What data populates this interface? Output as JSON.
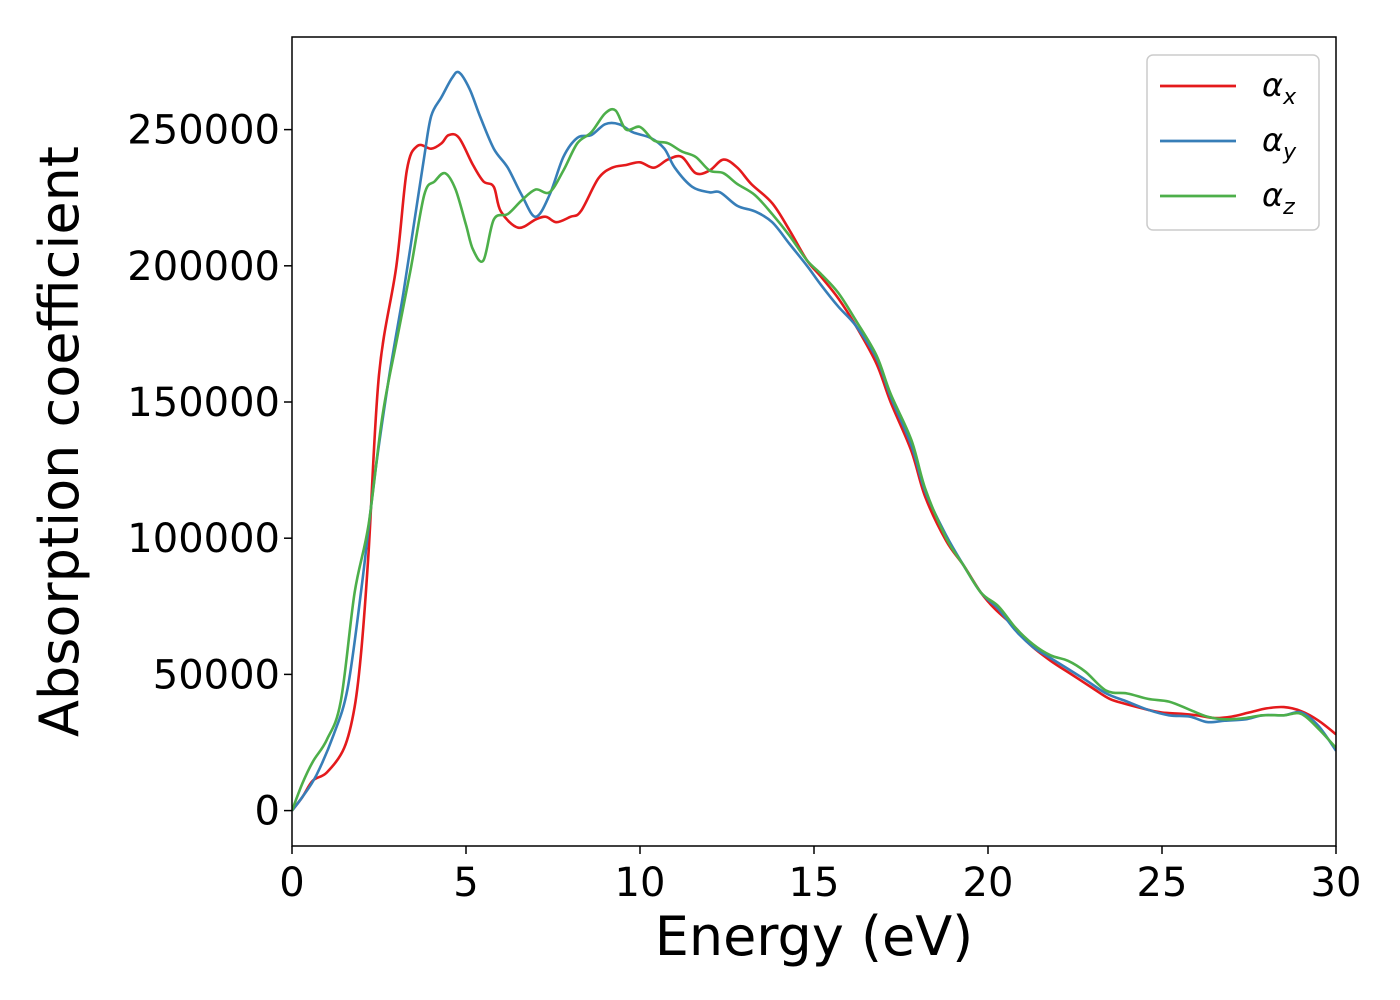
{
  "chart_data": {
    "type": "line",
    "xlabel": "Energy (eV)",
    "ylabel": "Absorption coefficient",
    "xlim": [
      0,
      30
    ],
    "ylim": [
      -13000,
      284000
    ],
    "xticks": [
      0,
      5,
      10,
      15,
      20,
      25,
      30
    ],
    "yticks": [
      0,
      50000,
      100000,
      150000,
      200000,
      250000
    ],
    "xtick_labels": [
      "0",
      "5",
      "10",
      "15",
      "20",
      "25",
      "30"
    ],
    "ytick_labels": [
      "0",
      "50000",
      "100000",
      "150000",
      "200000",
      "250000"
    ],
    "grid": false,
    "legend_position": "top-right",
    "series": [
      {
        "name": "αx",
        "legend_base": "α",
        "legend_sub": "x",
        "color": "#e41a1c",
        "points": [
          [
            0,
            0
          ],
          [
            0.3,
            5000
          ],
          [
            0.6,
            11000
          ],
          [
            1.0,
            14000
          ],
          [
            1.5,
            23000
          ],
          [
            1.8,
            38000
          ],
          [
            2.0,
            60000
          ],
          [
            2.2,
            95000
          ],
          [
            2.5,
            160000
          ],
          [
            3.0,
            200000
          ],
          [
            3.3,
            235000
          ],
          [
            3.6,
            244000
          ],
          [
            4.0,
            243000
          ],
          [
            4.3,
            245000
          ],
          [
            4.5,
            248000
          ],
          [
            4.8,
            247000
          ],
          [
            5.2,
            237000
          ],
          [
            5.5,
            231000
          ],
          [
            5.8,
            229000
          ],
          [
            6.0,
            220000
          ],
          [
            6.5,
            214000
          ],
          [
            7.0,
            217000
          ],
          [
            7.3,
            218000
          ],
          [
            7.6,
            216000
          ],
          [
            8.0,
            218000
          ],
          [
            8.3,
            220000
          ],
          [
            8.8,
            232000
          ],
          [
            9.2,
            236000
          ],
          [
            9.6,
            237000
          ],
          [
            10.0,
            238000
          ],
          [
            10.4,
            236000
          ],
          [
            10.8,
            239000
          ],
          [
            11.2,
            240000
          ],
          [
            11.6,
            234000
          ],
          [
            12.0,
            235000
          ],
          [
            12.4,
            239000
          ],
          [
            12.8,
            236000
          ],
          [
            13.2,
            230000
          ],
          [
            13.8,
            223000
          ],
          [
            14.3,
            213000
          ],
          [
            14.8,
            202000
          ],
          [
            15.2,
            196000
          ],
          [
            15.7,
            188000
          ],
          [
            16.2,
            178000
          ],
          [
            16.8,
            164000
          ],
          [
            17.2,
            150000
          ],
          [
            17.8,
            132000
          ],
          [
            18.2,
            115000
          ],
          [
            18.8,
            99000
          ],
          [
            19.3,
            90000
          ],
          [
            19.8,
            80000
          ],
          [
            20.2,
            74000
          ],
          [
            20.8,
            67000
          ],
          [
            21.2,
            61000
          ],
          [
            21.8,
            55000
          ],
          [
            22.4,
            50000
          ],
          [
            23.0,
            45000
          ],
          [
            23.5,
            41000
          ],
          [
            24.0,
            39000
          ],
          [
            24.6,
            37000
          ],
          [
            25.0,
            36000
          ],
          [
            25.6,
            35500
          ],
          [
            26.0,
            35000
          ],
          [
            26.5,
            34000
          ],
          [
            27.0,
            34500
          ],
          [
            27.5,
            36000
          ],
          [
            28.0,
            37500
          ],
          [
            28.5,
            38000
          ],
          [
            29.0,
            36500
          ],
          [
            29.5,
            33000
          ],
          [
            30.0,
            28000
          ]
        ]
      },
      {
        "name": "αy",
        "legend_base": "α",
        "legend_sub": "y",
        "color": "#377eb8",
        "points": [
          [
            0,
            0
          ],
          [
            0.3,
            5000
          ],
          [
            0.7,
            13000
          ],
          [
            1.2,
            28000
          ],
          [
            1.6,
            45000
          ],
          [
            2.0,
            82000
          ],
          [
            2.4,
            125000
          ],
          [
            2.8,
            160000
          ],
          [
            3.2,
            190000
          ],
          [
            3.5,
            215000
          ],
          [
            3.8,
            240000
          ],
          [
            4.0,
            255000
          ],
          [
            4.3,
            262000
          ],
          [
            4.6,
            269000
          ],
          [
            4.8,
            271000
          ],
          [
            5.1,
            265000
          ],
          [
            5.4,
            255000
          ],
          [
            5.8,
            243000
          ],
          [
            6.2,
            236000
          ],
          [
            6.6,
            226000
          ],
          [
            7.0,
            218000
          ],
          [
            7.4,
            226000
          ],
          [
            7.8,
            240000
          ],
          [
            8.2,
            247000
          ],
          [
            8.6,
            248000
          ],
          [
            9.0,
            252000
          ],
          [
            9.4,
            252000
          ],
          [
            9.8,
            249000
          ],
          [
            10.3,
            247000
          ],
          [
            10.7,
            243000
          ],
          [
            11.0,
            236000
          ],
          [
            11.5,
            229000
          ],
          [
            12.0,
            227000
          ],
          [
            12.3,
            227000
          ],
          [
            12.8,
            222000
          ],
          [
            13.3,
            220000
          ],
          [
            13.8,
            216000
          ],
          [
            14.3,
            208000
          ],
          [
            14.8,
            200000
          ],
          [
            15.2,
            193000
          ],
          [
            15.7,
            185000
          ],
          [
            16.2,
            178000
          ],
          [
            16.8,
            166000
          ],
          [
            17.2,
            152000
          ],
          [
            17.8,
            134000
          ],
          [
            18.2,
            117000
          ],
          [
            18.8,
            101000
          ],
          [
            19.3,
            90000
          ],
          [
            19.8,
            80000
          ],
          [
            20.3,
            74000
          ],
          [
            20.8,
            66000
          ],
          [
            21.3,
            60000
          ],
          [
            21.8,
            56000
          ],
          [
            22.3,
            52000
          ],
          [
            22.8,
            48000
          ],
          [
            23.4,
            43000
          ],
          [
            24.0,
            40000
          ],
          [
            24.6,
            37000
          ],
          [
            25.2,
            35000
          ],
          [
            25.8,
            34500
          ],
          [
            26.3,
            32500
          ],
          [
            26.8,
            33000
          ],
          [
            27.4,
            33500
          ],
          [
            27.9,
            35000
          ],
          [
            28.5,
            35000
          ],
          [
            29.0,
            36000
          ],
          [
            29.5,
            31000
          ],
          [
            30.0,
            22000
          ]
        ]
      },
      {
        "name": "αz",
        "legend_base": "α",
        "legend_sub": "z",
        "color": "#4daf4a",
        "points": [
          [
            0,
            0
          ],
          [
            0.3,
            10000
          ],
          [
            0.6,
            18000
          ],
          [
            1.0,
            26000
          ],
          [
            1.4,
            40000
          ],
          [
            1.8,
            80000
          ],
          [
            2.2,
            105000
          ],
          [
            2.6,
            145000
          ],
          [
            3.0,
            172000
          ],
          [
            3.4,
            198000
          ],
          [
            3.8,
            226000
          ],
          [
            4.1,
            231000
          ],
          [
            4.4,
            234000
          ],
          [
            4.7,
            228000
          ],
          [
            5.0,
            215000
          ],
          [
            5.2,
            206000
          ],
          [
            5.5,
            202000
          ],
          [
            5.8,
            217000
          ],
          [
            6.2,
            219000
          ],
          [
            6.6,
            224000
          ],
          [
            7.0,
            228000
          ],
          [
            7.4,
            227000
          ],
          [
            7.8,
            235000
          ],
          [
            8.2,
            245000
          ],
          [
            8.6,
            249000
          ],
          [
            9.0,
            256000
          ],
          [
            9.3,
            257000
          ],
          [
            9.6,
            250000
          ],
          [
            10.0,
            251000
          ],
          [
            10.4,
            246000
          ],
          [
            10.8,
            245000
          ],
          [
            11.2,
            242000
          ],
          [
            11.6,
            240000
          ],
          [
            12.0,
            235000
          ],
          [
            12.4,
            234000
          ],
          [
            12.8,
            230000
          ],
          [
            13.3,
            226000
          ],
          [
            13.8,
            219000
          ],
          [
            14.3,
            211000
          ],
          [
            14.8,
            202000
          ],
          [
            15.2,
            197000
          ],
          [
            15.7,
            190000
          ],
          [
            16.2,
            180000
          ],
          [
            16.8,
            167000
          ],
          [
            17.2,
            153000
          ],
          [
            17.8,
            136000
          ],
          [
            18.2,
            118000
          ],
          [
            18.8,
            100000
          ],
          [
            19.3,
            90000
          ],
          [
            19.8,
            80000
          ],
          [
            20.3,
            75000
          ],
          [
            20.8,
            67000
          ],
          [
            21.3,
            61000
          ],
          [
            21.8,
            57000
          ],
          [
            22.3,
            55000
          ],
          [
            22.8,
            51000
          ],
          [
            23.4,
            44000
          ],
          [
            24.0,
            43000
          ],
          [
            24.6,
            41000
          ],
          [
            25.2,
            40000
          ],
          [
            25.8,
            37000
          ],
          [
            26.3,
            34500
          ],
          [
            26.8,
            33500
          ],
          [
            27.4,
            34000
          ],
          [
            27.9,
            35000
          ],
          [
            28.5,
            35000
          ],
          [
            29.0,
            35500
          ],
          [
            29.5,
            30000
          ],
          [
            30.0,
            23000
          ]
        ]
      }
    ]
  }
}
